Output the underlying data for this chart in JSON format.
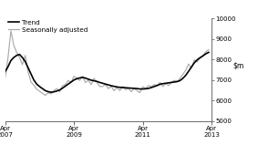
{
  "ylim": [
    5000,
    10000
  ],
  "yticks": [
    5000,
    6000,
    7000,
    8000,
    9000,
    10000
  ],
  "xlim_start": 0,
  "xlim_end": 72,
  "xtick_positions_shown": [
    0,
    24,
    48,
    72
  ],
  "xtick_labels_shown": [
    "Apr\n2007",
    "Apr\n2009",
    "Apr\n2011",
    "Apr\n2013"
  ],
  "trend_color": "#000000",
  "seas_color": "#aaaaaa",
  "trend_lw": 1.2,
  "seas_lw": 0.85,
  "legend_trend": "Trend",
  "legend_seas": "Seasonally adjusted",
  "background": "#ffffff",
  "trend_data": [
    7400,
    7650,
    7950,
    8100,
    8200,
    8250,
    8100,
    7900,
    7600,
    7300,
    7000,
    6800,
    6680,
    6580,
    6480,
    6430,
    6400,
    6420,
    6460,
    6510,
    6600,
    6700,
    6800,
    6900,
    7000,
    7060,
    7100,
    7130,
    7090,
    7040,
    6990,
    6960,
    6930,
    6880,
    6840,
    6800,
    6760,
    6720,
    6690,
    6660,
    6640,
    6630,
    6620,
    6610,
    6600,
    6590,
    6580,
    6560,
    6560,
    6570,
    6590,
    6630,
    6680,
    6730,
    6790,
    6820,
    6840,
    6860,
    6880,
    6900,
    6920,
    6970,
    7080,
    7230,
    7430,
    7640,
    7840,
    7990,
    8090,
    8180,
    8280,
    8350
  ],
  "seas_data": [
    7100,
    8100,
    9400,
    8700,
    8350,
    8100,
    7750,
    8200,
    7400,
    6900,
    6750,
    6550,
    6450,
    6350,
    6250,
    6380,
    6320,
    6480,
    6580,
    6420,
    6720,
    6780,
    6980,
    6870,
    7180,
    7080,
    6980,
    7170,
    6880,
    6980,
    6780,
    7080,
    6880,
    6680,
    6680,
    6780,
    6580,
    6680,
    6480,
    6630,
    6480,
    6680,
    6530,
    6580,
    6430,
    6580,
    6480,
    6380,
    6670,
    6580,
    6730,
    6670,
    6780,
    6730,
    6880,
    6680,
    6830,
    6730,
    6880,
    6980,
    6930,
    7080,
    7280,
    7480,
    7780,
    7580,
    7980,
    7880,
    8080,
    8180,
    8380,
    8480
  ]
}
